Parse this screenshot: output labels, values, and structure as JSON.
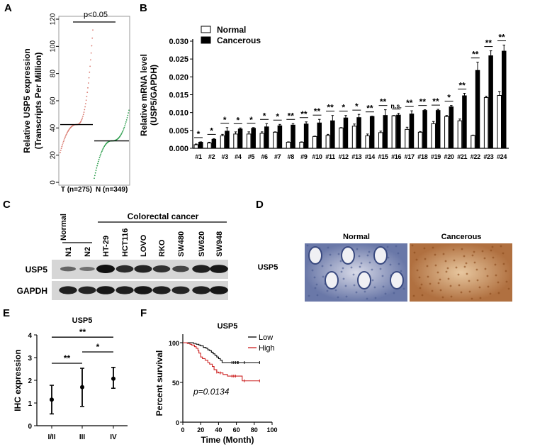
{
  "panel_labels": {
    "a": "A",
    "b": "B",
    "c": "C",
    "d": "D",
    "e": "E",
    "f": "F"
  },
  "chart_data": [
    {
      "panel": "A",
      "type": "scatter",
      "ylabel_line1": "Relative USP5 expression",
      "ylabel_line2": "(Transcripts Per Million)",
      "ylim": [
        0,
        120
      ],
      "yticks": [
        "0",
        "20",
        "40",
        "60",
        "80",
        "100",
        "120"
      ],
      "categories": [
        "T (n=275)",
        "N (n=349)"
      ],
      "series": [
        {
          "name": "T (n=275)",
          "color": "#d9796f",
          "median": 42.5,
          "min": 22,
          "max": 112
        },
        {
          "name": "N (n=349)",
          "color": "#2a9d4b",
          "median": 30.5,
          "min": 3,
          "max": 53
        }
      ],
      "annotation": "p<0.05"
    },
    {
      "panel": "B",
      "type": "bar",
      "ylabel_line1": "Relative mRNA  level",
      "ylabel_line2": "(USP5/GAPDH)",
      "ylim": [
        0,
        0.03
      ],
      "yticks": [
        "0.000",
        "0.005",
        "0.010",
        "0.015",
        "0.020",
        "0.025",
        "0.030"
      ],
      "categories": [
        "#1",
        "#2",
        "#3",
        "#4",
        "#5",
        "#6",
        "#7",
        "#8",
        "#9",
        "#10",
        "#11",
        "#12",
        "#13",
        "#14",
        "#15",
        "#16",
        "#17",
        "#18",
        "#19",
        "#20",
        "#21",
        "#22",
        "#23",
        "#24"
      ],
      "series": [
        {
          "name": "Normal",
          "color": "#ffffff",
          "values": [
            0.001,
            0.0015,
            0.0035,
            0.004,
            0.004,
            0.0042,
            0.0045,
            0.0017,
            0.0017,
            0.0033,
            0.0036,
            0.0057,
            0.0062,
            0.0035,
            0.0044,
            0.0091,
            0.0053,
            0.0045,
            0.0069,
            0.0089,
            0.0077,
            0.0036,
            0.0142,
            0.0148
          ],
          "errors": [
            0.0002,
            0.0002,
            0.0004,
            0.0006,
            0.0006,
            0.0004,
            0.0001,
            0.0001,
            0.0001,
            0.0001,
            0.0003,
            0.0001,
            0.0006,
            0.0005,
            0.0004,
            0.0001,
            0.0006,
            0.0002,
            0.0006,
            0.0003,
            0.0005,
            0.0001,
            0.0004,
            0.0011
          ]
        },
        {
          "name": "Cancerous",
          "color": "#000000",
          "values": [
            0.0017,
            0.0025,
            0.0048,
            0.0054,
            0.0056,
            0.006,
            0.0063,
            0.0065,
            0.0068,
            0.0071,
            0.0077,
            0.0085,
            0.0086,
            0.0089,
            0.0092,
            0.0093,
            0.0096,
            0.0106,
            0.0106,
            0.0116,
            0.0147,
            0.0218,
            0.0259,
            0.0272
          ],
          "errors": [
            0.0001,
            0.0002,
            0.001,
            0.0003,
            0.0002,
            0.0009,
            0.0004,
            0.0004,
            0.0006,
            0.001,
            0.0015,
            0.0007,
            0.0009,
            0.0001,
            0.0016,
            0.0005,
            0.0009,
            0.0002,
            0.0003,
            0.0004,
            0.0007,
            0.0023,
            0.0014,
            0.0017
          ]
        }
      ],
      "significance": [
        "*",
        "*",
        "*",
        "*",
        "*",
        "*",
        "*",
        "**",
        "**",
        "**",
        "**",
        "*",
        "*",
        "**",
        "**",
        "n.s.",
        "**",
        "**",
        "**",
        "*",
        "**",
        "**",
        "**",
        "**"
      ],
      "legend": "top-left"
    },
    {
      "panel": "E",
      "type": "scatter",
      "title": "USP5",
      "ylabel": "IHC expression",
      "ylim": [
        0,
        4
      ],
      "yticks": [
        "0",
        "1",
        "2",
        "3",
        "4"
      ],
      "categories": [
        "I/II",
        "III",
        "IV"
      ],
      "values": [
        1.15,
        1.7,
        2.07
      ],
      "error_low": [
        0.52,
        0.85,
        1.65
      ],
      "error_high": [
        1.78,
        2.53,
        2.57
      ],
      "comparisons": [
        {
          "from": "I/II",
          "to": "IV",
          "y": 3.9,
          "label": "**"
        },
        {
          "from": "III",
          "to": "IV",
          "y": 3.25,
          "label": "*"
        },
        {
          "from": "I/II",
          "to": "III",
          "y": 2.75,
          "label": "**"
        }
      ]
    },
    {
      "panel": "F",
      "type": "line",
      "title": "USP5",
      "xlabel": "Time (Month)",
      "ylabel": "Percent survival",
      "xlim": [
        0,
        100
      ],
      "ylim": [
        0,
        100
      ],
      "xticks": [
        "0",
        "20",
        "40",
        "60",
        "80",
        "100"
      ],
      "yticks": [
        "0",
        "50",
        "100"
      ],
      "legend": "top-right",
      "annotation": "p=0.0134",
      "series": [
        {
          "name": "Low",
          "color": "#000000",
          "x": [
            0,
            10,
            12,
            15,
            18,
            20,
            23,
            26,
            28,
            30,
            32,
            34,
            36,
            38,
            40,
            42,
            44,
            86
          ],
          "y": [
            100,
            100,
            99,
            98,
            97,
            96,
            94,
            93,
            91,
            90,
            88,
            86,
            84,
            82,
            80,
            78,
            75,
            75
          ],
          "censored": [
            55,
            57,
            59,
            61,
            62,
            69,
            86
          ]
        },
        {
          "name": "High",
          "color": "#cc2020",
          "x": [
            0,
            5,
            8,
            10,
            13,
            15,
            17,
            18,
            20,
            22,
            25,
            28,
            30,
            33,
            35,
            38,
            40,
            45,
            50,
            55,
            66,
            66.5,
            86
          ],
          "y": [
            100,
            99,
            98,
            97,
            95,
            93,
            90,
            87,
            82,
            80,
            78,
            75,
            73,
            70,
            66,
            63,
            62,
            60,
            58,
            58,
            58,
            52,
            52
          ],
          "censored": [
            38,
            42,
            55,
            57,
            59,
            69,
            86
          ]
        }
      ]
    }
  ],
  "panel_c": {
    "group_normal": "Normal",
    "group_cancer": "Colorectal cancer",
    "lanes": [
      "N1",
      "N2",
      "HT-29",
      "HCT116",
      "LOVO",
      "RKO",
      "SW480",
      "SW620",
      "SW948"
    ],
    "rows": [
      {
        "label": "USP5",
        "intensity": [
          0.35,
          0.25,
          1.0,
          0.8,
          0.85,
          0.75,
          0.6,
          0.9,
          0.95
        ]
      },
      {
        "label": "GAPDH",
        "intensity": [
          0.9,
          0.85,
          0.95,
          0.9,
          0.95,
          0.9,
          0.85,
          0.9,
          0.95
        ]
      }
    ]
  },
  "panel_d": {
    "row_label": "USP5",
    "images": [
      "Normal",
      "Cancerous"
    ]
  }
}
